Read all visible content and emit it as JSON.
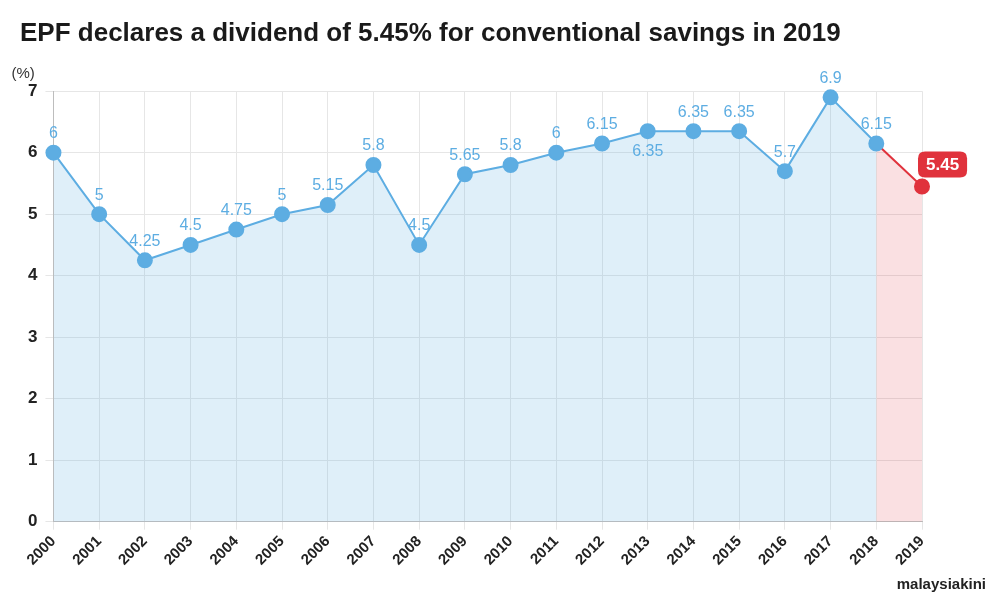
{
  "chart_data": {
    "type": "line",
    "title": "EPF declares a dividend of 5.45% for conventional savings in 2019",
    "y_label": "(%)",
    "source": "malaysiakini",
    "categories": [
      "2000",
      "2001",
      "2002",
      "2003",
      "2004",
      "2005",
      "2006",
      "2007",
      "2008",
      "2009",
      "2010",
      "2011",
      "2012",
      "2013",
      "2014",
      "2015",
      "2016",
      "2017",
      "2018",
      "2019"
    ],
    "series": [
      {
        "name": "Dividend",
        "color": "#5dade2",
        "colors": [
          "#5dade2",
          "#5dade2",
          "#5dade2",
          "#5dade2",
          "#5dade2",
          "#5dade2",
          "#5dade2",
          "#5dade2",
          "#5dade2",
          "#5dade2",
          "#5dade2",
          "#5dade2",
          "#5dade2",
          "#5dade2",
          "#5dade2",
          "#5dade2",
          "#5dade2",
          "#5dade2",
          "#5dade2",
          "#e0323c"
        ],
        "values": [
          6,
          5,
          4.25,
          4.5,
          4.75,
          5,
          5.15,
          5.8,
          4.5,
          5.65,
          5.8,
          6,
          6.15,
          6.35,
          6.35,
          6.35,
          5.7,
          6.9,
          6.15,
          5.45
        ]
      }
    ],
    "ylim": [
      0,
      7
    ],
    "yticks": [
      0,
      1,
      2,
      3,
      4,
      5,
      6,
      7
    ],
    "grid": true,
    "data_labels": true
  }
}
